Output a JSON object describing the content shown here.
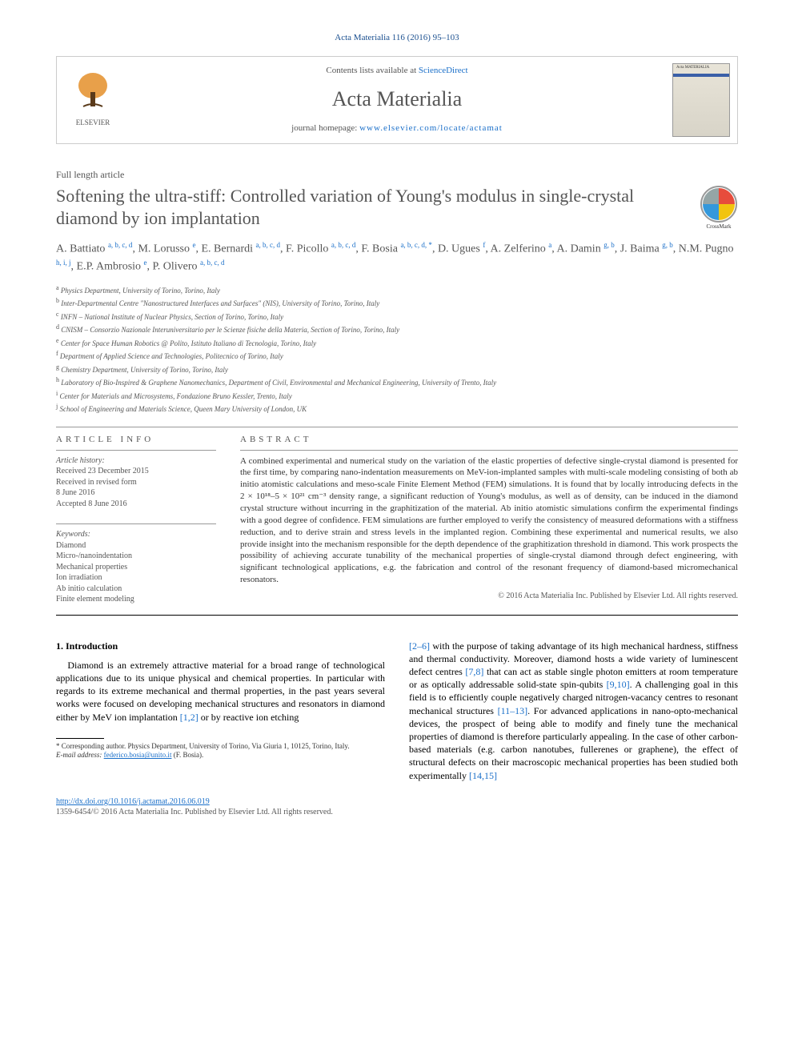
{
  "citation": "Acta Materialia 116 (2016) 95–103",
  "header": {
    "contents_prefix": "Contents lists available at ",
    "contents_link": "ScienceDirect",
    "journal": "Acta Materialia",
    "homepage_prefix": "journal homepage: ",
    "homepage_url": "www.elsevier.com/locate/actamat",
    "publisher": "ELSEVIER",
    "cover_label": "Acta MATERIALIA"
  },
  "article_type": "Full length article",
  "title": "Softening the ultra-stiff: Controlled variation of Young's modulus in single-crystal diamond by ion implantation",
  "crossmark_label": "CrossMark",
  "authors_html": "A. Battiato <sup>a, b, c, d</sup>, M. Lorusso <sup>e</sup>, E. Bernardi <sup>a, b, c, d</sup>, F. Picollo <sup>a, b, c, d</sup>, F. Bosia <sup>a, b, c, d, *</sup>, D. Ugues <sup>f</sup>, A. Zelferino <sup>a</sup>, A. Damin <sup>g, b</sup>, J. Baima <sup>g, b</sup>, N.M. Pugno <sup>h, i, j</sup>, E.P. Ambrosio <sup>e</sup>, P. Olivero <sup>a, b, c, d</sup>",
  "affiliations": [
    {
      "k": "a",
      "t": "Physics Department, University of Torino, Torino, Italy"
    },
    {
      "k": "b",
      "t": "Inter-Departmental Centre \"Nanostructured Interfaces and Surfaces\" (NIS), University of Torino, Torino, Italy"
    },
    {
      "k": "c",
      "t": "INFN – National Institute of Nuclear Physics, Section of Torino, Torino, Italy"
    },
    {
      "k": "d",
      "t": "CNISM – Consorzio Nazionale Interuniversitario per le Scienze fisiche della Materia, Section of Torino, Torino, Italy"
    },
    {
      "k": "e",
      "t": "Center for Space Human Robotics @ Polito, Istituto Italiano di Tecnologia, Torino, Italy"
    },
    {
      "k": "f",
      "t": "Department of Applied Science and Technologies, Politecnico of Torino, Italy"
    },
    {
      "k": "g",
      "t": "Chemistry Department, University of Torino, Torino, Italy"
    },
    {
      "k": "h",
      "t": "Laboratory of Bio-Inspired & Graphene Nanomechanics, Department of Civil, Environmental and Mechanical Engineering, University of Trento, Italy"
    },
    {
      "k": "i",
      "t": "Center for Materials and Microsystems, Fondazione Bruno Kessler, Trento, Italy"
    },
    {
      "k": "j",
      "t": "School of Engineering and Materials Science, Queen Mary University of London, UK"
    }
  ],
  "article_info": {
    "heading": "ARTICLE INFO",
    "history_label": "Article history:",
    "received": "Received 23 December 2015",
    "revised": "Received in revised form",
    "revised_date": "8 June 2016",
    "accepted": "Accepted 8 June 2016",
    "keywords_label": "Keywords:",
    "keywords": [
      "Diamond",
      "Micro-/nanoindentation",
      "Mechanical properties",
      "Ion irradiation",
      "Ab initio calculation",
      "Finite element modeling"
    ]
  },
  "abstract": {
    "heading": "ABSTRACT",
    "text": "A combined experimental and numerical study on the variation of the elastic properties of defective single-crystal diamond is presented for the first time, by comparing nano-indentation measurements on MeV-ion-implanted samples with multi-scale modeling consisting of both ab initio atomistic calculations and meso-scale Finite Element Method (FEM) simulations. It is found that by locally introducing defects in the 2 × 10¹⁸–5 × 10²¹ cm⁻³ density range, a significant reduction of Young's modulus, as well as of density, can be induced in the diamond crystal structure without incurring in the graphitization of the material. Ab initio atomistic simulations confirm the experimental findings with a good degree of confidence. FEM simulations are further employed to verify the consistency of measured deformations with a stiffness reduction, and to derive strain and stress levels in the implanted region. Combining these experimental and numerical results, we also provide insight into the mechanism responsible for the depth dependence of the graphitization threshold in diamond. This work prospects the possibility of achieving accurate tunability of the mechanical properties of single-crystal diamond through defect engineering, with significant technological applications, e.g. the fabrication and control of the resonant frequency of diamond-based micromechanical resonators.",
    "copyright": "© 2016 Acta Materialia Inc. Published by Elsevier Ltd. All rights reserved."
  },
  "body": {
    "section_heading": "1. Introduction",
    "col1_p1": "Diamond is an extremely attractive material for a broad range of technological applications due to its unique physical and chemical properties. In particular with regards to its extreme mechanical and thermal properties, in the past years several works were focused on developing mechanical structures and resonators in diamond either by MeV ion implantation ",
    "col1_ref1": "[1,2]",
    "col1_p1b": " or by reactive ion etching",
    "col2_ref1": "[2–6]",
    "col2_p1": " with the purpose of taking advantage of its high mechanical hardness, stiffness and thermal conductivity. Moreover, diamond hosts a wide variety of luminescent defect centres ",
    "col2_ref2": "[7,8]",
    "col2_p2": " that can act as stable single photon emitters at room temperature or as optically addressable solid-state spin-qubits ",
    "col2_ref3": "[9,10]",
    "col2_p3": ". A challenging goal in this field is to efficiently couple negatively charged nitrogen-vacancy centres to resonant mechanical structures ",
    "col2_ref4": "[11–13]",
    "col2_p4": ". For advanced applications in nano-opto-mechanical devices, the prospect of being able to modify and finely tune the mechanical properties of diamond is therefore particularly appealing. In the case of other carbon-based materials (e.g. carbon nanotubes, fullerenes or graphene), the effect of structural defects on their macroscopic mechanical properties has been studied both experimentally ",
    "col2_ref5": "[14,15]"
  },
  "footnotes": {
    "corr": "* Corresponding author. Physics Department, University of Torino, Via Giuria 1, 10125, Torino, Italy.",
    "email_label": "E-mail address: ",
    "email": "federico.bosia@unito.it",
    "email_suffix": " (F. Bosia)."
  },
  "bottom": {
    "doi": "http://dx.doi.org/10.1016/j.actamat.2016.06.019",
    "issn_line": "1359-6454/© 2016 Acta Materialia Inc. Published by Elsevier Ltd. All rights reserved."
  },
  "colors": {
    "link": "#1a6fc9",
    "text_muted": "#555555",
    "border": "#cccccc"
  }
}
